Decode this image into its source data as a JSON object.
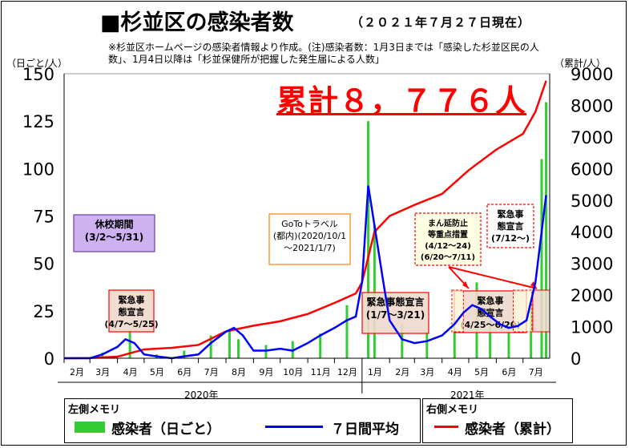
{
  "header": {
    "title": "■杉並区の感染者数",
    "date": "（２０２１年７月２７日現在）",
    "note": "※杉並区ホームページの感染者情報より作成。(注)感染者数：1月3日までは「感染した杉並区民の人数」、1月4日以降は「杉並保健所が把握した発生届による人数」"
  },
  "total_label": "累計８，７７６人",
  "legend": {
    "left_title": "左側メモリ",
    "daily_label": "感染者（日ごと）",
    "avg_label": "７日間平均",
    "right_title": "右側メモリ",
    "cumulative_label": "感染者（累計）"
  },
  "colors": {
    "daily": "#33cc33",
    "avg": "#0000ff",
    "cumulative": "#ff0000",
    "school_box_fill": "#c8a8f0",
    "emergency_fill": "#f0d8cc",
    "goto_border": "#ff8000",
    "manbou_fill": "#ffffe0"
  },
  "chart_data": {
    "type": "bar+line",
    "left_axis_unit": "（日ごと/人）",
    "right_axis_unit": "（累計/人）",
    "left_ticks": [
      "150",
      "125",
      "100",
      "75",
      "50",
      "25",
      "0"
    ],
    "right_ticks": [
      "9000",
      "8000",
      "7000",
      "6000",
      "5000",
      "4000",
      "3000",
      "2000",
      "1000",
      "0"
    ],
    "ylim_left": [
      0,
      150
    ],
    "ylim_right": [
      0,
      9000
    ],
    "months": [
      "2月",
      "3月",
      "4月",
      "5月",
      "6月",
      "7月",
      "8月",
      "9月",
      "10月",
      "11月",
      "12月",
      "1月",
      "2月",
      "3月",
      "4月",
      "5月",
      "6月",
      "7月"
    ],
    "years": [
      "2020年",
      "2021年"
    ],
    "series": [
      {
        "name": "感染者（日ごと）",
        "axis": "left",
        "type": "bar",
        "x": [
          "2020-03-15",
          "2020-04-15",
          "2020-05-15",
          "2020-06-15",
          "2020-07-15",
          "2020-08-05",
          "2020-08-15",
          "2020-09-15",
          "2020-10-15",
          "2020-11-15",
          "2020-12-15",
          "2021-01-08",
          "2021-01-15",
          "2021-02-15",
          "2021-03-15",
          "2021-04-15",
          "2021-05-10",
          "2021-05-25",
          "2021-06-15",
          "2021-07-10",
          "2021-07-22",
          "2021-07-27"
        ],
        "values": [
          3,
          15,
          2,
          4,
          12,
          15,
          10,
          7,
          9,
          13,
          28,
          125,
          70,
          18,
          14,
          20,
          40,
          30,
          15,
          28,
          105,
          135
        ]
      },
      {
        "name": "７日間平均",
        "axis": "left",
        "type": "line",
        "x": [
          "2020-02-01",
          "2020-03-01",
          "2020-03-15",
          "2020-04-01",
          "2020-04-10",
          "2020-04-20",
          "2020-05-01",
          "2020-05-15",
          "2020-06-01",
          "2020-06-15",
          "2020-07-01",
          "2020-07-15",
          "2020-08-01",
          "2020-08-10",
          "2020-08-20",
          "2020-09-01",
          "2020-09-15",
          "2020-10-01",
          "2020-10-15",
          "2020-11-01",
          "2020-11-15",
          "2020-12-01",
          "2020-12-15",
          "2020-12-25",
          "2021-01-01",
          "2021-01-08",
          "2021-01-15",
          "2021-01-25",
          "2021-02-01",
          "2021-02-15",
          "2021-03-01",
          "2021-03-15",
          "2021-04-01",
          "2021-04-15",
          "2021-04-25",
          "2021-05-05",
          "2021-05-15",
          "2021-05-25",
          "2021-06-05",
          "2021-06-15",
          "2021-06-25",
          "2021-07-05",
          "2021-07-15",
          "2021-07-27"
        ],
        "values": [
          0,
          0,
          2,
          6,
          10,
          8,
          2,
          1,
          0,
          1,
          2,
          8,
          14,
          16,
          12,
          4,
          4,
          5,
          4,
          8,
          12,
          16,
          20,
          22,
          40,
          91,
          70,
          40,
          20,
          10,
          8,
          9,
          12,
          18,
          24,
          28,
          26,
          22,
          18,
          16,
          17,
          20,
          40,
          86
        ]
      },
      {
        "name": "感染者（累計）",
        "axis": "right",
        "type": "line",
        "x": [
          "2020-02-01",
          "2020-03-01",
          "2020-04-01",
          "2020-05-01",
          "2020-06-01",
          "2020-07-01",
          "2020-08-01",
          "2020-09-01",
          "2020-10-01",
          "2020-11-01",
          "2020-12-01",
          "2020-12-25",
          "2021-01-01",
          "2021-01-15",
          "2021-02-01",
          "2021-03-01",
          "2021-04-01",
          "2021-05-01",
          "2021-06-01",
          "2021-07-01",
          "2021-07-15",
          "2021-07-27"
        ],
        "values": [
          0,
          5,
          50,
          280,
          330,
          420,
          850,
          1030,
          1170,
          1400,
          1750,
          2050,
          2400,
          4000,
          4500,
          4850,
          5200,
          5950,
          6600,
          7100,
          7800,
          8776
        ]
      }
    ],
    "annotations": {
      "school": {
        "line1": "休校期間",
        "line2": "(3/2～5/31)"
      },
      "emergency1": {
        "line1": "緊急事",
        "line2": "態宣言",
        "line3": "(4/7～5/25)"
      },
      "goto": {
        "line1": "GoToトラベル",
        "line2": "(都内)(2020/10/1",
        "line3": "～2021/1/7)"
      },
      "emergency2": {
        "line1": "緊急事態宣言",
        "line2": "(1/7～3/21)"
      },
      "manbou": {
        "line1": "まん延防止",
        "line2": "等重点措置",
        "line3": "(4/12～24)",
        "line4": "(6/20～7/11)"
      },
      "emergency3": {
        "line1": "緊急事",
        "line2": "態宣言",
        "line3": "(4/25～6/20)"
      },
      "emergency4": {
        "line1": "緊急事",
        "line2": "態宣言",
        "line3": "(7/12～)"
      }
    }
  }
}
